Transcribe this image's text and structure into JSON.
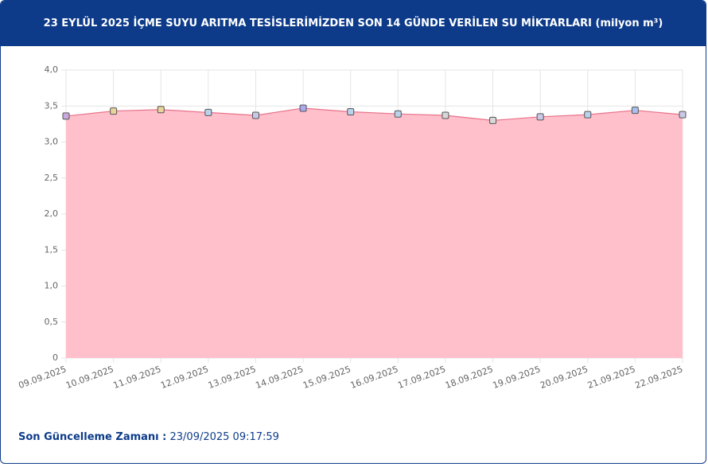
{
  "chart_data": {
    "type": "area",
    "title": "23 EYLÜL 2025 İÇME SUYU ARITMA TESİSLERİMİZDEN SON 14 GÜNDE VERİLEN SU MİKTARLARI (milyon m³)",
    "categories": [
      "09.09.2025",
      "10.09.2025",
      "11.09.2025",
      "12.09.2025",
      "13.09.2025",
      "14.09.2025",
      "15.09.2025",
      "16.09.2025",
      "17.09.2025",
      "18.09.2025",
      "19.09.2025",
      "20.09.2025",
      "21.09.2025",
      "22.09.2025"
    ],
    "values": [
      3.36,
      3.43,
      3.45,
      3.41,
      3.37,
      3.47,
      3.42,
      3.39,
      3.37,
      3.3,
      3.35,
      3.38,
      3.44,
      3.38
    ],
    "color": "#e8728a",
    "fill": "#ffc0cb",
    "point_colors": [
      "#c9a9e0",
      "#e8d49a",
      "#e8d49a",
      "#b9d3ec",
      "#c9c9e8",
      "#a9a9f0",
      "#b9d3ec",
      "#b9d3ec",
      "#d8d8d8",
      "#d8d8d8",
      "#c9c9e8",
      "#b9d3ec",
      "#a9c0ec",
      "#c9c9e8"
    ],
    "ylim": [
      0,
      4
    ],
    "yticks": [
      0,
      {
        "value": 0.5,
        "label": "0,5"
      },
      {
        "value": 1,
        "label": "1,0"
      },
      {
        "value": 1.5,
        "label": "1,5"
      },
      {
        "value": 2,
        "label": "2,0"
      },
      {
        "value": 2.5,
        "label": "2,5"
      },
      {
        "value": 3,
        "label": "3,0"
      },
      {
        "value": 3.5,
        "label": "3,5"
      },
      {
        "value": 4,
        "label": "4,0"
      }
    ],
    "grid": true
  },
  "footer": {
    "label": "Son Güncelleme Zamanı :",
    "value": "23/09/2025 09:17:59"
  }
}
